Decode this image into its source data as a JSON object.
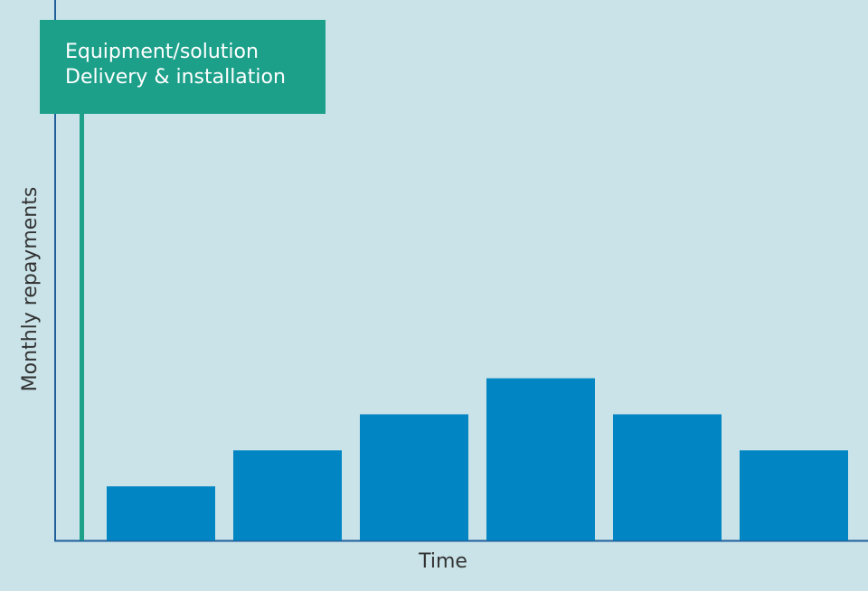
{
  "chart_data": {
    "type": "bar",
    "categories": [
      null,
      null,
      null,
      null,
      null,
      null
    ],
    "values": [
      3,
      5,
      7,
      9,
      7,
      5
    ],
    "color": "#0286c3",
    "ylim": [
      0,
      30
    ],
    "x_label": "Time",
    "y_label": "Monthly repayments",
    "annotation": [
      "Equipment/solution",
      "Delivery & installation"
    ]
  }
}
